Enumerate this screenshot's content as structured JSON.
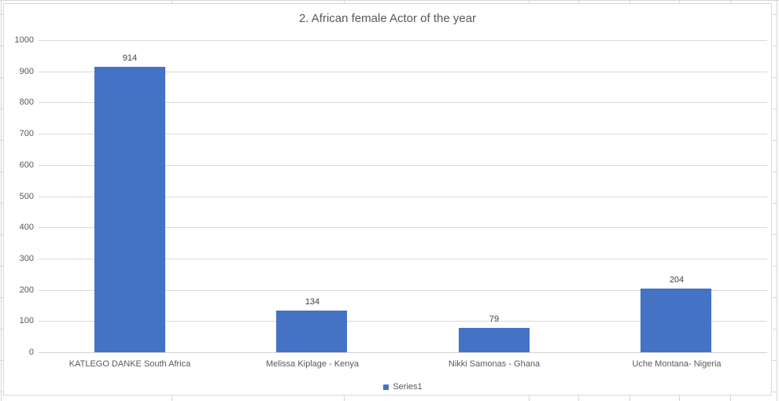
{
  "window": {
    "context": "spreadsheet embedded chart object"
  },
  "chart_data": {
    "type": "bar",
    "title": "2. African female Actor of the year",
    "categories": [
      "KATLEGO DANKE South Africa",
      "Melissa Kiplage - Kenya",
      "Nikki Samonas - Ghana",
      "Uche Montana- Nigeria"
    ],
    "series": [
      {
        "name": "Series1",
        "values": [
          914,
          134,
          79,
          204
        ]
      }
    ],
    "xlabel": "",
    "ylabel": "",
    "ylim": [
      0,
      1000
    ],
    "ytick_step": 100,
    "grid": true,
    "data_labels": true,
    "legend_position": "bottom"
  },
  "colors": {
    "bar": "#4472C4",
    "gridline": "#D9D9D9",
    "axis_line": "#D0D0D0",
    "title_text": "#595959",
    "axis_text": "#595959",
    "data_label_text": "#404040",
    "chart_border": "#D9D9D9",
    "sheet_gridline": "#D6D6D6"
  }
}
